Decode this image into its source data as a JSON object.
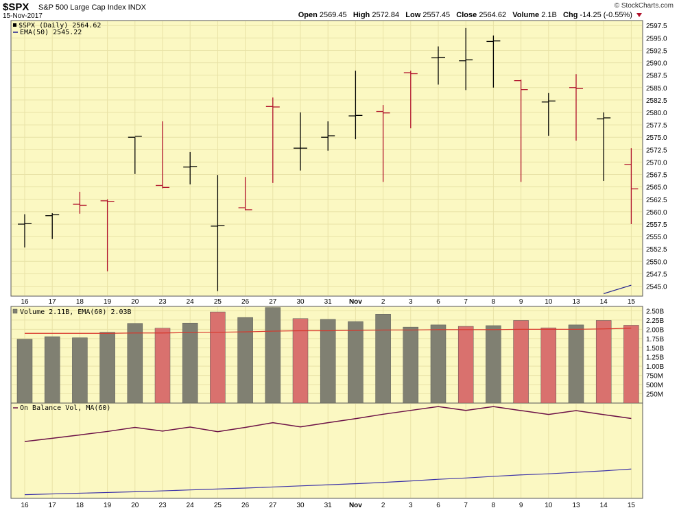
{
  "header": {
    "symbol": "$SPX",
    "name": "S&P 500 Large Cap Index INDX",
    "date": "15-Nov-2017",
    "brand": "© StockCharts.com",
    "open_label": "Open",
    "open": "2569.45",
    "high_label": "High",
    "high": "2572.84",
    "low_label": "Low",
    "low": "2557.45",
    "close_label": "Close",
    "close": "2564.62",
    "volume_label": "Volume",
    "volume": "2.1B",
    "chg_label": "Chg",
    "chg": "-14.25 (-0.55%)"
  },
  "colors": {
    "panel_bg": "#fbf8c2",
    "grid": "#e8e2a6",
    "up": "#000000",
    "down": "#b0102a",
    "vol_up": "#808072",
    "vol_down": "#d9716e",
    "ema_price": "#1f1f8f",
    "ema_vol": "#d8362b",
    "obv": "#6b1046",
    "obv_ma": "#3d33a8"
  },
  "chart_data": [
    {
      "type": "ohlc",
      "legend": [
        "$SPX (Daily) 2564.62",
        "EMA(50) 2545.22"
      ],
      "x": [
        "16",
        "17",
        "18",
        "19",
        "20",
        "23",
        "24",
        "25",
        "26",
        "27",
        "30",
        "31",
        "Nov",
        "2",
        "3",
        "6",
        "7",
        "8",
        "9",
        "10",
        "13",
        "14",
        "15"
      ],
      "open": [
        2557.5,
        2559.2,
        2561.5,
        2562.2,
        2575.0,
        2565.3,
        2569.0,
        2557.1,
        2560.8,
        2581.2,
        2572.8,
        2575.0,
        2579.3,
        2580.2,
        2588.0,
        2591.0,
        2590.4,
        2594.3,
        2586.4,
        2582.1,
        2585.0,
        2578.7,
        2569.5
      ],
      "high": [
        2559.5,
        2559.7,
        2564.0,
        2562.5,
        2575.0,
        2578.2,
        2572.0,
        2567.4,
        2567.0,
        2583.0,
        2580.0,
        2578.2,
        2588.4,
        2581.5,
        2588.4,
        2593.3,
        2597.0,
        2595.5,
        2586.6,
        2583.9,
        2587.7,
        2580.0,
        2572.8
      ],
      "low": [
        2552.8,
        2554.5,
        2559.6,
        2548.0,
        2567.6,
        2564.7,
        2565.5,
        2544.0,
        2560.3,
        2565.8,
        2568.3,
        2572.3,
        2574.6,
        2566.0,
        2576.8,
        2585.6,
        2584.5,
        2585.0,
        2566.0,
        2575.3,
        2574.3,
        2566.2,
        2557.5
      ],
      "close": [
        2557.6,
        2559.4,
        2561.3,
        2562.1,
        2575.2,
        2564.9,
        2569.1,
        2557.2,
        2560.4,
        2581.1,
        2572.8,
        2575.3,
        2579.4,
        2579.9,
        2587.8,
        2591.1,
        2590.6,
        2594.4,
        2584.6,
        2582.3,
        2584.8,
        2578.9,
        2564.6
      ],
      "ema50_tail": [
        [
          21,
          2543.5
        ],
        [
          22,
          2545.2
        ]
      ],
      "ylim": [
        2543.0,
        2598.5
      ],
      "yticks": [
        "2545.0",
        "2547.5",
        "2550.0",
        "2552.5",
        "2555.0",
        "2557.5",
        "2560.0",
        "2562.5",
        "2565.0",
        "2567.5",
        "2570.0",
        "2572.5",
        "2575.0",
        "2577.5",
        "2580.0",
        "2582.5",
        "2585.0",
        "2587.5",
        "2590.0",
        "2592.5",
        "2595.0",
        "2597.5"
      ]
    },
    {
      "type": "bar",
      "legend": "Volume 2.11B, EMA(60) 2.03B",
      "unit": "B",
      "values": [
        1.73,
        1.8,
        1.77,
        1.92,
        2.16,
        2.03,
        2.17,
        2.47,
        2.32,
        2.59,
        2.29,
        2.27,
        2.21,
        2.41,
        2.06,
        2.12,
        2.08,
        2.1,
        2.24,
        2.04,
        2.12,
        2.24,
        2.11
      ],
      "direction": [
        "up",
        "up",
        "up",
        "up",
        "up",
        "down",
        "up",
        "down",
        "up",
        "up",
        "down",
        "up",
        "up",
        "up",
        "up",
        "up",
        "down",
        "up",
        "down",
        "down",
        "up",
        "down",
        "down"
      ],
      "ema60": [
        1.89,
        1.89,
        1.89,
        1.89,
        1.9,
        1.9,
        1.91,
        1.92,
        1.93,
        1.95,
        1.96,
        1.96,
        1.97,
        1.98,
        1.98,
        1.99,
        1.99,
        1.99,
        2.0,
        2.0,
        2.0,
        2.01,
        2.03
      ],
      "ylim": [
        0,
        2.62
      ],
      "yticks": [
        [
          "250M",
          0.25
        ],
        [
          "500M",
          0.5
        ],
        [
          "750M",
          0.75
        ],
        [
          "1.00B",
          1.0
        ],
        [
          "1.25B",
          1.25
        ],
        [
          "1.50B",
          1.5
        ],
        [
          "1.75B",
          1.75
        ],
        [
          "2.00B",
          2.0
        ],
        [
          "2.25B",
          2.25
        ],
        [
          "2.50B",
          2.5
        ]
      ]
    },
    {
      "type": "line",
      "legend": "On Balance Vol, MA(60)",
      "series": [
        {
          "values": [
            0.0,
            1.8,
            3.6,
            5.5,
            7.7,
            5.7,
            7.9,
            5.4,
            7.7,
            10.3,
            8.0,
            10.3,
            12.5,
            14.9,
            17.0,
            19.1,
            17.0,
            19.1,
            16.9,
            14.8,
            16.9,
            14.7,
            12.6
          ]
        },
        {
          "values": [
            -29.0,
            -28.6,
            -28.2,
            -27.8,
            -27.4,
            -26.9,
            -26.4,
            -25.9,
            -25.4,
            -24.8,
            -24.2,
            -23.6,
            -23.0,
            -22.3,
            -21.5,
            -20.6,
            -19.9,
            -19.0,
            -18.2,
            -17.6,
            -16.8,
            -16.0,
            -15.0
          ]
        }
      ],
      "ylim": [
        -31.0,
        21.0
      ]
    }
  ]
}
